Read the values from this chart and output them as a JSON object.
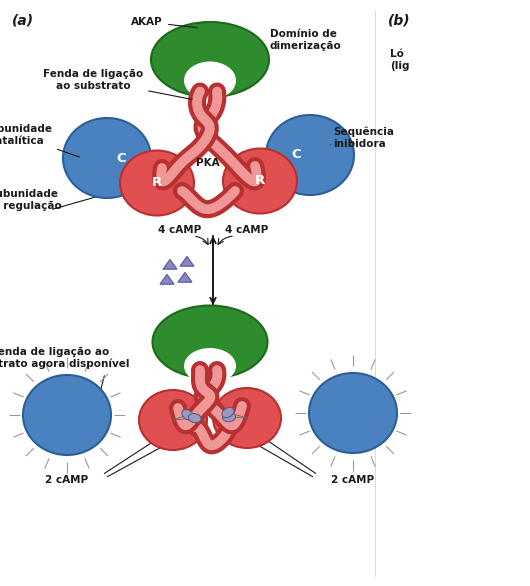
{
  "bg_color": "#ffffff",
  "label_a": "(a)",
  "label_b": "(b)",
  "akap_label": "AKAP",
  "dimerization_label": "Domínio de\ndimerização",
  "fenda_label_top": "Fenda de ligação\nao substrato",
  "subunidade_catalitica": "Subunidade\ncatalítica",
  "pka_label": "PKA",
  "sequencia_label": "Sequência\ninibidora",
  "subunidade_regulacao": "Subunidade\nde regulação",
  "camp4_left": "4 cAMP",
  "camp4_right": "4 cAMP",
  "fenda_bottom": "Fenda de ligação ao\nsubstrato agora disponível",
  "camp2_left": "2 cAMP",
  "camp2_right": "2 cAMP",
  "green_dark": "#1a6b1a",
  "green_main": "#2e8b2e",
  "red_dark": "#b83030",
  "red_main": "#e05050",
  "red_light": "#f09898",
  "blue_dark": "#2a5f99",
  "blue_main": "#4a82c0",
  "blue_light": "#88bbee",
  "purple_main": "#8888bb",
  "purple_dark": "#5555aa",
  "label_color": "#1a1a1a",
  "C_label": "C",
  "R_label": "R",
  "fs_label": 7.5,
  "fs_letter": 9.5
}
